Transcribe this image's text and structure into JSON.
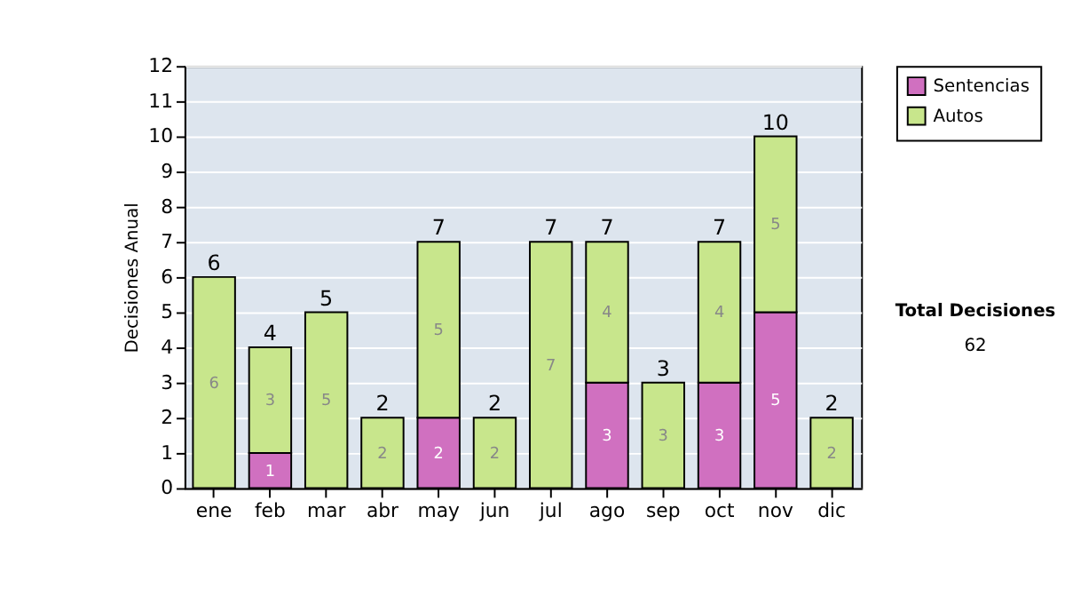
{
  "chart_data": {
    "type": "bar",
    "stacked": true,
    "ylabel": "Decisiones Anual",
    "categories": [
      "ene",
      "feb",
      "mar",
      "abr",
      "may",
      "jun",
      "jul",
      "ago",
      "sep",
      "oct",
      "nov",
      "dic"
    ],
    "series": [
      {
        "name": "Sentencias",
        "color": "#d070c0",
        "values": [
          null,
          1,
          null,
          null,
          2,
          null,
          null,
          3,
          null,
          3,
          5,
          null
        ]
      },
      {
        "name": "Autos",
        "color": "#c8e68c",
        "values": [
          6,
          3,
          5,
          2,
          5,
          2,
          7,
          4,
          3,
          4,
          5,
          2
        ]
      }
    ],
    "totals": [
      "6",
      "4",
      "5",
      "2",
      "7",
      "2",
      "7",
      "7",
      "3",
      "7",
      "10",
      "2"
    ],
    "data_labels": true,
    "ylim": [
      0,
      12
    ],
    "yticks": [
      0,
      1,
      2,
      3,
      4,
      5,
      6,
      7,
      8,
      9,
      10,
      11,
      12
    ],
    "grid": "y",
    "legend": "right",
    "annotations": [
      "Total Decisiones",
      "62"
    ]
  }
}
